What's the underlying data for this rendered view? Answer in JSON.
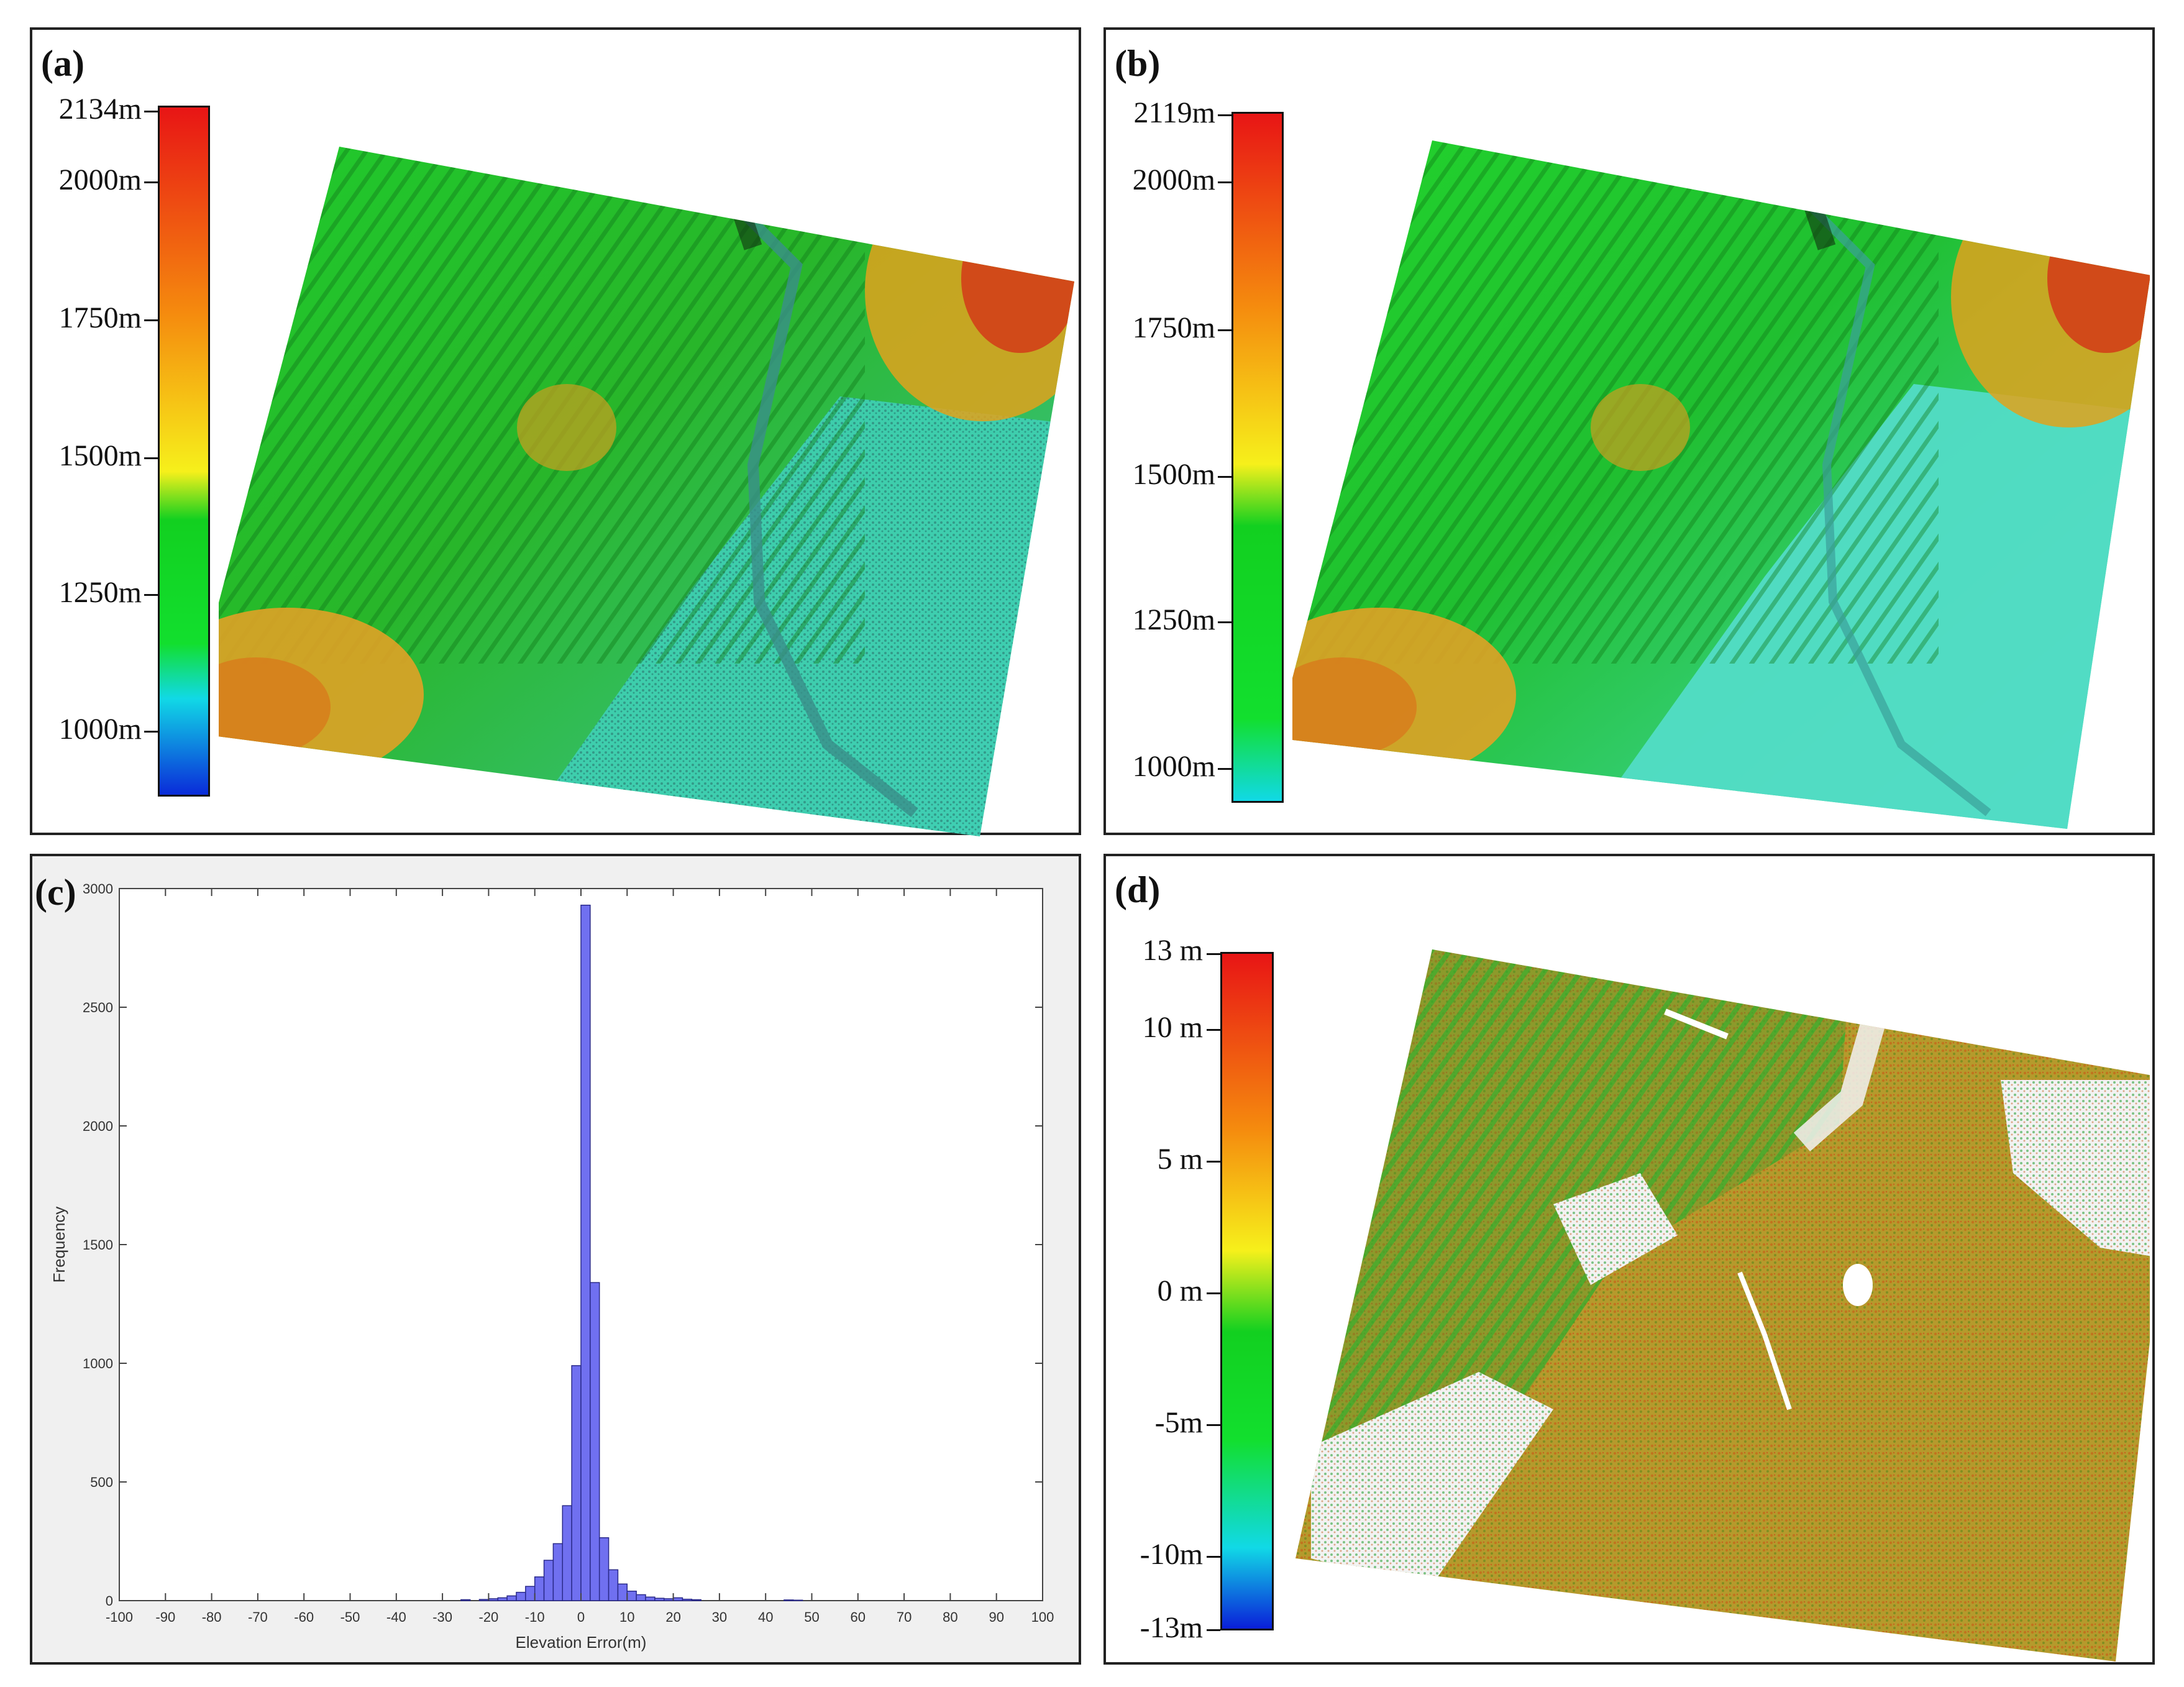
{
  "panels": {
    "a": {
      "label": "(a)",
      "colorbar_ticks": [
        "2134m",
        "2000m",
        "1750m",
        "1500m",
        "1250m",
        "1000m"
      ]
    },
    "b": {
      "label": "(b)",
      "colorbar_ticks": [
        "2119m",
        "2000m",
        "1750m",
        "1500m",
        "1250m",
        "1000m"
      ]
    },
    "c": {
      "label": "(c)"
    },
    "d": {
      "label": "(d)",
      "colorbar_ticks": [
        "13 m",
        "10 m",
        "5 m",
        "0 m",
        "-5m",
        "-10m",
        "-13m"
      ]
    }
  },
  "colors": {
    "elevation_ramp": [
      "#0a2bd9",
      "#11d9e6",
      "#12df2e",
      "#12d020",
      "#f6f01b",
      "#f58b0e",
      "#e81515"
    ],
    "histogram_bar": "#7070f0",
    "panel_c_background": "#f0f0f0"
  },
  "chart_data": {
    "type": "bar",
    "xlabel": "Elevation Error(m)",
    "ylabel": "Frequency",
    "xlim": [
      -100,
      100
    ],
    "ylim": [
      0,
      3000
    ],
    "x_ticks": [
      "-100",
      "-90",
      "-80",
      "-70",
      "-60",
      "-50",
      "-40",
      "-30",
      "-20",
      "-10",
      "0",
      "10",
      "20",
      "30",
      "40",
      "50",
      "60",
      "70",
      "80",
      "90",
      "100"
    ],
    "y_ticks": [
      "0",
      "500",
      "1000",
      "1500",
      "2000",
      "2500",
      "3000"
    ],
    "bin_width": 2,
    "bins": [
      {
        "x": -25,
        "v": 4
      },
      {
        "x": -21,
        "v": 5
      },
      {
        "x": -19,
        "v": 8
      },
      {
        "x": -17,
        "v": 12
      },
      {
        "x": -15,
        "v": 20
      },
      {
        "x": -13,
        "v": 35
      },
      {
        "x": -11,
        "v": 60
      },
      {
        "x": -9,
        "v": 100
      },
      {
        "x": -7,
        "v": 170
      },
      {
        "x": -5,
        "v": 240
      },
      {
        "x": -3,
        "v": 400
      },
      {
        "x": -1,
        "v": 990
      },
      {
        "x": 1,
        "v": 2930
      },
      {
        "x": 3,
        "v": 1340
      },
      {
        "x": 5,
        "v": 265
      },
      {
        "x": 7,
        "v": 130
      },
      {
        "x": 9,
        "v": 70
      },
      {
        "x": 11,
        "v": 40
      },
      {
        "x": 13,
        "v": 25
      },
      {
        "x": 15,
        "v": 15
      },
      {
        "x": 17,
        "v": 10
      },
      {
        "x": 19,
        "v": 8
      },
      {
        "x": 21,
        "v": 12
      },
      {
        "x": 23,
        "v": 6
      },
      {
        "x": 25,
        "v": 4
      },
      {
        "x": 45,
        "v": 3
      },
      {
        "x": 47,
        "v": 2
      }
    ]
  }
}
